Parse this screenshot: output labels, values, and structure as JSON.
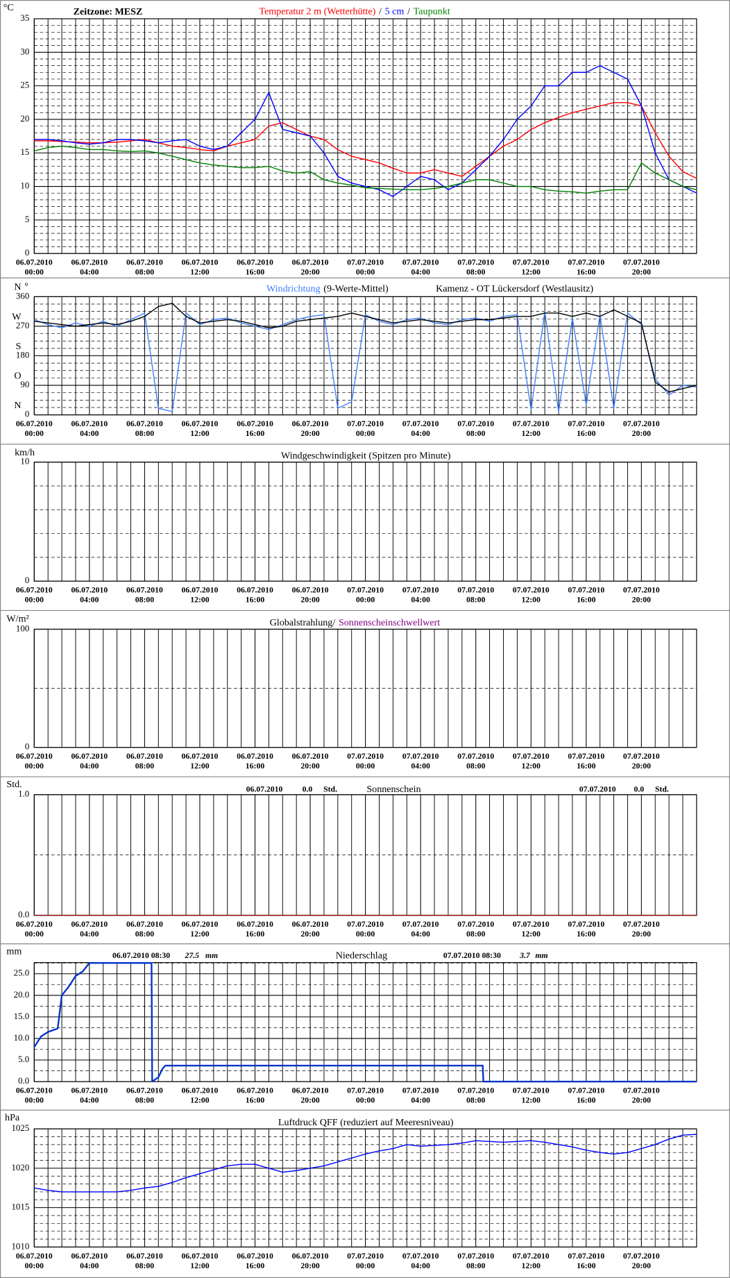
{
  "chart_data": [
    {
      "type": "line",
      "y_unit": "°C",
      "annotation": "Zeitzone: MESZ",
      "legend_separator": "/",
      "xlim": [
        0,
        48
      ],
      "xticks": [
        {
          "value": 0,
          "label": "06.07.2010 00:00"
        },
        {
          "value": 4,
          "label": "06.07.2010 04:00"
        },
        {
          "value": 8,
          "label": "06.07.2010 08:00"
        },
        {
          "value": 12,
          "label": "06.07.2010 12:00"
        },
        {
          "value": 16,
          "label": "06.07.2010 16:00"
        },
        {
          "value": 20,
          "label": "06.07.2010 20:00"
        },
        {
          "value": 24,
          "label": "07.07.2010 00:00"
        },
        {
          "value": 28,
          "label": "07.07.2010 04:00"
        },
        {
          "value": 32,
          "label": "07.07.2010 08:00"
        },
        {
          "value": 36,
          "label": "07.07.2010 12:00"
        },
        {
          "value": 40,
          "label": "07.07.2010 16:00"
        },
        {
          "value": 44,
          "label": "07.07.2010 20:00"
        }
      ],
      "ylim": [
        0,
        35
      ],
      "yticks": [
        0,
        5,
        10,
        15,
        20,
        25,
        30,
        35
      ],
      "x": [
        0,
        1,
        2,
        3,
        4,
        5,
        6,
        7,
        8,
        9,
        10,
        11,
        12,
        13,
        14,
        15,
        16,
        17,
        18,
        19,
        20,
        21,
        22,
        23,
        24,
        25,
        26,
        27,
        28,
        29,
        30,
        31,
        32,
        33,
        34,
        35,
        36,
        37,
        38,
        39,
        40,
        41,
        42,
        43,
        44,
        45,
        46,
        47,
        48
      ],
      "series": [
        {
          "name": "Temperatur 2 m (Wetterhütte)",
          "color": "#ff0000",
          "values": [
            16.8,
            16.8,
            16.7,
            16.6,
            16.5,
            16.5,
            16.6,
            16.8,
            17.0,
            16.5,
            16.0,
            15.8,
            15.5,
            15.3,
            16.0,
            16.5,
            17.0,
            19.0,
            19.5,
            18.5,
            17.5,
            17.0,
            15.5,
            14.5,
            14.0,
            13.5,
            12.7,
            12.0,
            12.0,
            12.5,
            12.0,
            11.5,
            13.0,
            14.5,
            16.0,
            17.0,
            18.5,
            19.5,
            20.3,
            21.0,
            21.5,
            22.0,
            22.5,
            22.5,
            22.0,
            18.0,
            14.5,
            12.2,
            11.2
          ]
        },
        {
          "name": "5 cm",
          "color": "#0000ff",
          "values": [
            17.0,
            17.0,
            16.8,
            16.5,
            16.3,
            16.5,
            17.0,
            17.0,
            16.8,
            16.5,
            16.8,
            17.0,
            16.0,
            15.5,
            16.0,
            18.0,
            20.0,
            24.0,
            18.5,
            18.0,
            17.5,
            15.0,
            11.5,
            10.5,
            10.0,
            9.5,
            8.5,
            10.0,
            11.5,
            11.0,
            9.5,
            10.5,
            12.5,
            14.5,
            17.0,
            20.0,
            22.0,
            25.0,
            25.0,
            27.0,
            27.0,
            28.0,
            27.0,
            26.0,
            22.0,
            15.0,
            11.0,
            10.0,
            9.0
          ]
        },
        {
          "name": "Taupunkt",
          "color": "#008000",
          "values": [
            15.3,
            15.8,
            16.0,
            15.8,
            15.5,
            15.5,
            15.3,
            15.2,
            15.3,
            15.0,
            14.5,
            14.0,
            13.5,
            13.2,
            13.0,
            12.8,
            12.8,
            13.0,
            12.3,
            12.0,
            12.2,
            11.0,
            10.5,
            10.2,
            9.8,
            9.7,
            9.6,
            9.5,
            9.5,
            9.7,
            10.0,
            10.5,
            11.0,
            11.0,
            10.5,
            10.0,
            10.0,
            9.5,
            9.3,
            9.2,
            9.0,
            9.3,
            9.5,
            9.5,
            13.5,
            12.0,
            11.0,
            10.0,
            9.5
          ]
        }
      ]
    },
    {
      "type": "line",
      "y_unit": "°",
      "subtitle": "Kamenz - OT Lückersdorf (Westlausitz)",
      "xlim": [
        0,
        48
      ],
      "xticks": [
        {
          "value": 0,
          "label": "06.07.2010 00:00"
        },
        {
          "value": 4,
          "label": "06.07.2010 04:00"
        },
        {
          "value": 8,
          "label": "06.07.2010 08:00"
        },
        {
          "value": 12,
          "label": "06.07.2010 12:00"
        },
        {
          "value": 16,
          "label": "06.07.2010 16:00"
        },
        {
          "value": 20,
          "label": "06.07.2010 20:00"
        },
        {
          "value": 24,
          "label": "07.07.2010 00:00"
        },
        {
          "value": 28,
          "label": "07.07.2010 04:00"
        },
        {
          "value": 32,
          "label": "07.07.2010 08:00"
        },
        {
          "value": 36,
          "label": "07.07.2010 12:00"
        },
        {
          "value": 40,
          "label": "07.07.2010 16:00"
        },
        {
          "value": 44,
          "label": "07.07.2010 20:00"
        }
      ],
      "ylim": [
        0,
        360
      ],
      "yticks": [
        0,
        90,
        180,
        270,
        360
      ],
      "compass_labels": [
        "N",
        "O",
        "S",
        "W",
        "N"
      ],
      "x": [
        0,
        1,
        2,
        3,
        4,
        5,
        6,
        7,
        8,
        9,
        10,
        11,
        12,
        13,
        14,
        15,
        16,
        17,
        18,
        19,
        20,
        21,
        22,
        23,
        24,
        25,
        26,
        27,
        28,
        29,
        30,
        31,
        32,
        33,
        34,
        35,
        36,
        37,
        38,
        39,
        40,
        41,
        42,
        43,
        44,
        45,
        46,
        47,
        48
      ],
      "series": [
        {
          "name": "Windrichtung",
          "color": "#3f7fff",
          "values": [
            290,
            275,
            265,
            280,
            270,
            285,
            270,
            290,
            310,
            20,
            10,
            310,
            275,
            290,
            295,
            280,
            270,
            260,
            275,
            290,
            300,
            305,
            20,
            40,
            305,
            285,
            275,
            290,
            295,
            280,
            275,
            290,
            295,
            285,
            300,
            305,
            15,
            315,
            10,
            295,
            30,
            305,
            20,
            310,
            275,
            110,
            60,
            90,
            85
          ]
        },
        {
          "name": "(9-Werte-Mittel)",
          "color": "#000000",
          "values": [
            285,
            280,
            275,
            270,
            275,
            280,
            275,
            285,
            300,
            330,
            340,
            300,
            280,
            285,
            290,
            285,
            275,
            265,
            270,
            285,
            290,
            295,
            300,
            310,
            300,
            290,
            280,
            285,
            290,
            285,
            280,
            285,
            290,
            290,
            295,
            300,
            300,
            310,
            310,
            300,
            310,
            300,
            320,
            300,
            280,
            100,
            70,
            80,
            90
          ]
        }
      ]
    },
    {
      "type": "line",
      "title": "Windgeschwindigkeit (Spitzen pro Minute)",
      "y_unit": "km/h",
      "xlim": [
        0,
        48
      ],
      "xticks": [
        {
          "value": 0,
          "label": "06.07.2010 00:00"
        },
        {
          "value": 4,
          "label": "06.07.2010 04:00"
        },
        {
          "value": 8,
          "label": "06.07.2010 08:00"
        },
        {
          "value": 12,
          "label": "06.07.2010 12:00"
        },
        {
          "value": 16,
          "label": "06.07.2010 16:00"
        },
        {
          "value": 20,
          "label": "06.07.2010 20:00"
        },
        {
          "value": 24,
          "label": "07.07.2010 00:00"
        },
        {
          "value": 28,
          "label": "07.07.2010 04:00"
        },
        {
          "value": 32,
          "label": "07.07.2010 08:00"
        },
        {
          "value": 36,
          "label": "07.07.2010 12:00"
        },
        {
          "value": 40,
          "label": "07.07.2010 16:00"
        },
        {
          "value": 44,
          "label": "07.07.2010 20:00"
        }
      ],
      "ylim": [
        0,
        10
      ],
      "yticks": [
        0,
        10
      ],
      "series": []
    },
    {
      "type": "line",
      "title": "Globalstrahlung/",
      "subtitle": "Sonnenscheinschwellwert",
      "subtitle_color": "#800080",
      "y_unit": "W/m²",
      "xlim": [
        0,
        48
      ],
      "xticks": [
        {
          "value": 0,
          "label": "06.07.2010 00:00"
        },
        {
          "value": 4,
          "label": "06.07.2010 04:00"
        },
        {
          "value": 8,
          "label": "06.07.2010 08:00"
        },
        {
          "value": 12,
          "label": "06.07.2010 12:00"
        },
        {
          "value": 16,
          "label": "06.07.2010 16:00"
        },
        {
          "value": 20,
          "label": "06.07.2010 20:00"
        },
        {
          "value": 24,
          "label": "07.07.2010 00:00"
        },
        {
          "value": 28,
          "label": "07.07.2010 04:00"
        },
        {
          "value": 32,
          "label": "07.07.2010 08:00"
        },
        {
          "value": 36,
          "label": "07.07.2010 12:00"
        },
        {
          "value": 40,
          "label": "07.07.2010 16:00"
        },
        {
          "value": 44,
          "label": "07.07.2010 20:00"
        }
      ],
      "ylim": [
        0,
        100
      ],
      "yticks": [
        0,
        100
      ],
      "series": []
    },
    {
      "type": "line",
      "title": "Sonnenschein",
      "y_unit": "Std.",
      "daily_totals": [
        {
          "date": "06.07.2010",
          "value": 0,
          "label": "0.0",
          "unit": "Std."
        },
        {
          "date": "07.07.2010",
          "value": 0,
          "label": "0.0",
          "unit": "Std."
        }
      ],
      "xlim": [
        0,
        48
      ],
      "xticks": [
        {
          "value": 0,
          "label": "06.07.2010 00:00"
        },
        {
          "value": 4,
          "label": "06.07.2010 04:00"
        },
        {
          "value": 8,
          "label": "06.07.2010 08:00"
        },
        {
          "value": 12,
          "label": "06.07.2010 12:00"
        },
        {
          "value": 16,
          "label": "06.07.2010 16:00"
        },
        {
          "value": 20,
          "label": "06.07.2010 20:00"
        },
        {
          "value": 24,
          "label": "07.07.2010 00:00"
        },
        {
          "value": 28,
          "label": "07.07.2010 04:00"
        },
        {
          "value": 32,
          "label": "07.07.2010 08:00"
        },
        {
          "value": 36,
          "label": "07.07.2010 12:00"
        },
        {
          "value": 40,
          "label": "07.07.2010 16:00"
        },
        {
          "value": 44,
          "label": "07.07.2010 20:00"
        }
      ],
      "ylim": [
        0,
        1
      ],
      "yticks": [
        {
          "value": 0,
          "label": "0.0"
        },
        {
          "value": 1,
          "label": "1.0"
        }
      ],
      "series": [
        {
          "color": "#8b0000",
          "x": [
            0,
            48
          ],
          "values": [
            0,
            0
          ]
        }
      ]
    },
    {
      "type": "line",
      "title": "Niederschlag",
      "y_unit": "mm",
      "daily_totals": [
        {
          "date": "06.07.2010 08:30",
          "value": 27.5,
          "unit": "mm"
        },
        {
          "date": "07.07.2010 08:30",
          "value": 3.7,
          "unit": "mm"
        }
      ],
      "xlim": [
        0,
        48
      ],
      "xticks": [
        {
          "value": 0,
          "label": "06.07.2010 00:00"
        },
        {
          "value": 4,
          "label": "06.07.2010 04:00"
        },
        {
          "value": 8,
          "label": "06.07.2010 08:00"
        },
        {
          "value": 12,
          "label": "06.07.2010 12:00"
        },
        {
          "value": 16,
          "label": "06.07.2010 16:00"
        },
        {
          "value": 20,
          "label": "06.07.2010 20:00"
        },
        {
          "value": 24,
          "label": "07.07.2010 00:00"
        },
        {
          "value": 28,
          "label": "07.07.2010 04:00"
        },
        {
          "value": 32,
          "label": "07.07.2010 08:00"
        },
        {
          "value": 36,
          "label": "07.07.2010 12:00"
        },
        {
          "value": 40,
          "label": "07.07.2010 16:00"
        },
        {
          "value": 44,
          "label": "07.07.2010 20:00"
        }
      ],
      "ylim": [
        0,
        27.6
      ],
      "yticks": [
        {
          "value": 0,
          "label": "0.0"
        },
        {
          "value": 5,
          "label": "5.0"
        },
        {
          "value": 10,
          "label": "10.0"
        },
        {
          "value": 15,
          "label": "15.0"
        },
        {
          "value": 20,
          "label": "20.0"
        },
        {
          "value": 25,
          "label": "25.0"
        }
      ],
      "series": [
        {
          "color": "#0033cc",
          "x": [
            0,
            0.5,
            1,
            1.7,
            2,
            2.5,
            3,
            3.5,
            4,
            8.5,
            8.55,
            9,
            9.3,
            9.5,
            32.5,
            32.55,
            48
          ],
          "values": [
            8,
            10.5,
            11.5,
            12.3,
            20,
            22,
            24.5,
            25.5,
            27.5,
            27.5,
            0,
            1,
            3,
            3.7,
            3.7,
            0,
            0
          ]
        }
      ]
    },
    {
      "type": "line",
      "title": "Luftdruck QFF (reduziert auf Meeresniveau)",
      "y_unit": "hPa",
      "xlim": [
        0,
        48
      ],
      "xticks": [
        {
          "value": 0,
          "label": "06.07.2010 00:00"
        },
        {
          "value": 4,
          "label": "06.07.2010 04:00"
        },
        {
          "value": 8,
          "label": "06.07.2010 08:00"
        },
        {
          "value": 12,
          "label": "06.07.2010 12:00"
        },
        {
          "value": 16,
          "label": "06.07.2010 16:00"
        },
        {
          "value": 20,
          "label": "06.07.2010 20:00"
        },
        {
          "value": 24,
          "label": "07.07.2010 00:00"
        },
        {
          "value": 28,
          "label": "07.07.2010 04:00"
        },
        {
          "value": 32,
          "label": "07.07.2010 08:00"
        },
        {
          "value": 36,
          "label": "07.07.2010 12:00"
        },
        {
          "value": 40,
          "label": "07.07.2010 16:00"
        },
        {
          "value": 44,
          "label": "07.07.2010 20:00"
        }
      ],
      "ylim": [
        1010,
        1025
      ],
      "yticks": [
        1010,
        1015,
        1020,
        1025
      ],
      "x": [
        0,
        1,
        2,
        3,
        4,
        5,
        6,
        7,
        8,
        9,
        10,
        11,
        12,
        13,
        14,
        15,
        16,
        17,
        18,
        19,
        20,
        21,
        22,
        23,
        24,
        25,
        26,
        27,
        28,
        29,
        30,
        31,
        32,
        33,
        34,
        35,
        36,
        37,
        38,
        39,
        40,
        41,
        42,
        43,
        44,
        45,
        46,
        47,
        48
      ],
      "series": [
        {
          "color": "#0000ff",
          "values": [
            1017.5,
            1017.2,
            1017,
            1017,
            1017,
            1017,
            1017,
            1017.2,
            1017.5,
            1017.7,
            1018.2,
            1018.8,
            1019.3,
            1019.8,
            1020.3,
            1020.5,
            1020.5,
            1020,
            1019.5,
            1019.7,
            1020,
            1020.3,
            1020.8,
            1021.3,
            1021.8,
            1022.2,
            1022.5,
            1023,
            1022.8,
            1022.9,
            1023,
            1023.2,
            1023.5,
            1023.4,
            1023.3,
            1023.4,
            1023.5,
            1023.3,
            1023,
            1022.7,
            1022.3,
            1022,
            1021.8,
            1022,
            1022.5,
            1023,
            1023.7,
            1024.2,
            1024.3
          ]
        }
      ]
    }
  ]
}
